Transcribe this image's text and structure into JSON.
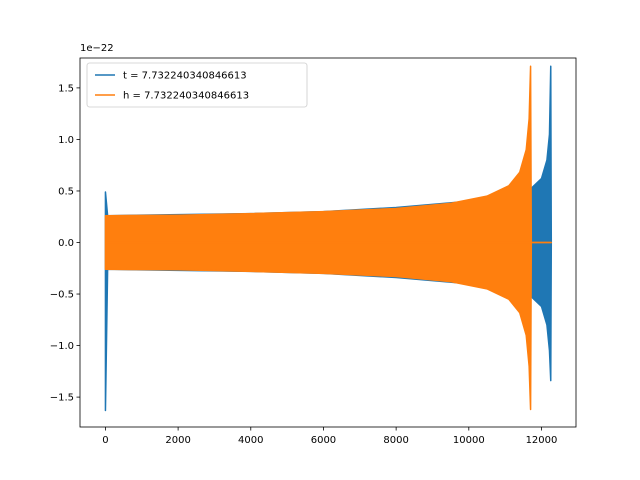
{
  "chart_data": {
    "type": "line",
    "title": "",
    "xlabel": "",
    "ylabel": "",
    "y_offset_label": "1e−22",
    "xlim": [
      -700,
      12950
    ],
    "ylim": [
      -1.79,
      1.79
    ],
    "xticks": [
      0,
      2000,
      4000,
      6000,
      8000,
      10000,
      12000
    ],
    "xtick_labels": [
      "0",
      "2000",
      "4000",
      "6000",
      "8000",
      "10000",
      "12000"
    ],
    "yticks": [
      -1.5,
      -1.0,
      -0.5,
      0.0,
      0.5,
      1.0,
      1.5
    ],
    "ytick_labels": [
      "−1.5",
      "−1.0",
      "−0.5",
      "0.0",
      "0.5",
      "1.0",
      "1.5"
    ],
    "grid": false,
    "legend_position": "upper-left",
    "series": [
      {
        "name": "t = 7.732240340846613",
        "color": "#1f77b4",
        "envelope": [
          {
            "x": 0,
            "lo": -1.63,
            "hi": 0.49
          },
          {
            "x": 60,
            "lo": -0.26,
            "hi": 0.26
          },
          {
            "x": 2000,
            "lo": -0.27,
            "hi": 0.27
          },
          {
            "x": 4000,
            "lo": -0.28,
            "hi": 0.28
          },
          {
            "x": 6000,
            "lo": -0.3,
            "hi": 0.3
          },
          {
            "x": 8000,
            "lo": -0.34,
            "hi": 0.34
          },
          {
            "x": 10000,
            "lo": -0.4,
            "hi": 0.4
          },
          {
            "x": 11000,
            "lo": -0.47,
            "hi": 0.47
          },
          {
            "x": 11700,
            "lo": -0.52,
            "hi": 0.52
          },
          {
            "x": 12000,
            "lo": -0.62,
            "hi": 0.62
          },
          {
            "x": 12150,
            "lo": -0.8,
            "hi": 0.8
          },
          {
            "x": 12220,
            "lo": -1.05,
            "hi": 1.05
          },
          {
            "x": 12255,
            "lo": -1.34,
            "hi": 1.71
          },
          {
            "x": 12270,
            "lo": 0.0,
            "hi": 0.0
          }
        ]
      },
      {
        "name": "h = 7.732240340846613",
        "color": "#ff7f0e",
        "envelope": [
          {
            "x": 0,
            "lo": -0.26,
            "hi": 0.26
          },
          {
            "x": 2000,
            "lo": -0.265,
            "hi": 0.265
          },
          {
            "x": 4000,
            "lo": -0.28,
            "hi": 0.28
          },
          {
            "x": 6000,
            "lo": -0.3,
            "hi": 0.3
          },
          {
            "x": 8000,
            "lo": -0.33,
            "hi": 0.33
          },
          {
            "x": 9500,
            "lo": -0.38,
            "hi": 0.38
          },
          {
            "x": 10500,
            "lo": -0.45,
            "hi": 0.45
          },
          {
            "x": 11100,
            "lo": -0.55,
            "hi": 0.55
          },
          {
            "x": 11400,
            "lo": -0.68,
            "hi": 0.68
          },
          {
            "x": 11580,
            "lo": -0.9,
            "hi": 0.9
          },
          {
            "x": 11660,
            "lo": -1.2,
            "hi": 1.2
          },
          {
            "x": 11700,
            "lo": -1.62,
            "hi": 1.71
          },
          {
            "x": 11720,
            "lo": 0.0,
            "hi": 0.0
          },
          {
            "x": 12270,
            "lo": 0.0,
            "hi": 0.0
          }
        ]
      }
    ]
  }
}
